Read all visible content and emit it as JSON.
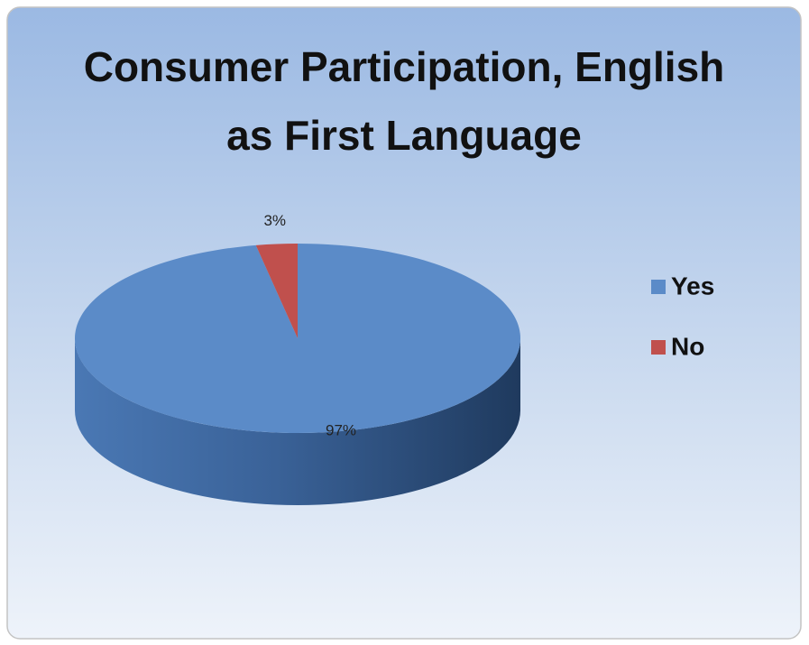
{
  "chart_data": {
    "type": "pie",
    "title": "Consumer Participation, English as First Language",
    "categories": [
      "Yes",
      "No"
    ],
    "values": [
      97,
      3
    ],
    "value_labels": [
      "97%",
      "3%"
    ],
    "colors": [
      "#5b8bc8",
      "#c0504d"
    ],
    "legend": "right"
  }
}
